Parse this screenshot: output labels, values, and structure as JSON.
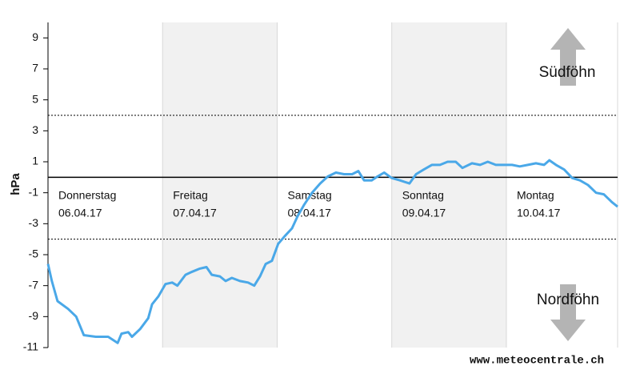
{
  "chart_data": {
    "type": "line",
    "ylabel": "hPa",
    "color": "#4aa8e8",
    "x": [
      0,
      0.8,
      2,
      4.2,
      5.9,
      7.5,
      10,
      12.6,
      14.6,
      15.4,
      16.8,
      17.6,
      19.3,
      21,
      21.8,
      23.1,
      24.6,
      26,
      27.1,
      28.8,
      30.2,
      31.8,
      33.2,
      34.3,
      36,
      37.2,
      38.5,
      40.2,
      41.9,
      43.2,
      44.4,
      45.6,
      46.9,
      48.2,
      49.6,
      51.1,
      52.3,
      53.6,
      55.3,
      57,
      58.6,
      60.3,
      62,
      63.7,
      65,
      66.2,
      67.8,
      69,
      70.4,
      72,
      73.7,
      75.7,
      77.1,
      78.7,
      80.4,
      82.1,
      83.7,
      85.4,
      86.8,
      88.8,
      90.5,
      92.1,
      93.8,
      95.5,
      97.2,
      98.8,
      100.5,
      102.2,
      103.9,
      105,
      106.4,
      108.1,
      109.8,
      111.4,
      113.1,
      114.8,
      116.4,
      118.1,
      119.3
    ],
    "values": [
      -5.6,
      -6.7,
      -8.0,
      -8.5,
      -9.0,
      -10.2,
      -10.3,
      -10.3,
      -10.7,
      -10.1,
      -10.0,
      -10.3,
      -9.8,
      -9.1,
      -8.2,
      -7.7,
      -6.9,
      -6.8,
      -7.0,
      -6.3,
      -6.1,
      -5.9,
      -5.8,
      -6.3,
      -6.4,
      -6.7,
      -6.5,
      -6.7,
      -6.8,
      -7.0,
      -6.4,
      -5.6,
      -5.4,
      -4.3,
      -3.8,
      -3.3,
      -2.5,
      -1.8,
      -1.0,
      -0.4,
      0.05,
      0.3,
      0.2,
      0.2,
      0.4,
      -0.2,
      -0.2,
      0.05,
      0.3,
      -0.05,
      -0.2,
      -0.4,
      0.2,
      0.5,
      0.8,
      0.8,
      1.0,
      1.0,
      0.6,
      0.9,
      0.8,
      1.0,
      0.8,
      0.8,
      0.8,
      0.7,
      0.8,
      0.9,
      0.8,
      1.1,
      0.8,
      0.5,
      -0.05,
      -0.2,
      -0.5,
      -1.0,
      -1.1,
      -1.6,
      -1.9
    ],
    "xlim": [
      0,
      119.3
    ],
    "ylim": [
      -11,
      10
    ],
    "yticks": [
      9,
      7,
      5,
      3,
      1,
      -1,
      -3,
      -5,
      -7,
      -9,
      -11
    ],
    "xticks": [
      {
        "value": 0,
        "label": "Donnerstag"
      },
      {
        "value": 24,
        "label": "Freitag"
      },
      {
        "value": 48,
        "label": "Samstag"
      },
      {
        "value": 72,
        "label": "Sonntag"
      },
      {
        "value": 96,
        "label": "Montag"
      }
    ],
    "xtick_dates": [
      "06.04.17",
      "07.04.17",
      "08.04.17",
      "09.04.17",
      "10.04.17"
    ],
    "thresholds": [
      4,
      -4
    ],
    "annotations": {
      "upper": "Südföhn",
      "lower": "Nordföhn",
      "source": "www.meteocentrale.ch"
    }
  }
}
